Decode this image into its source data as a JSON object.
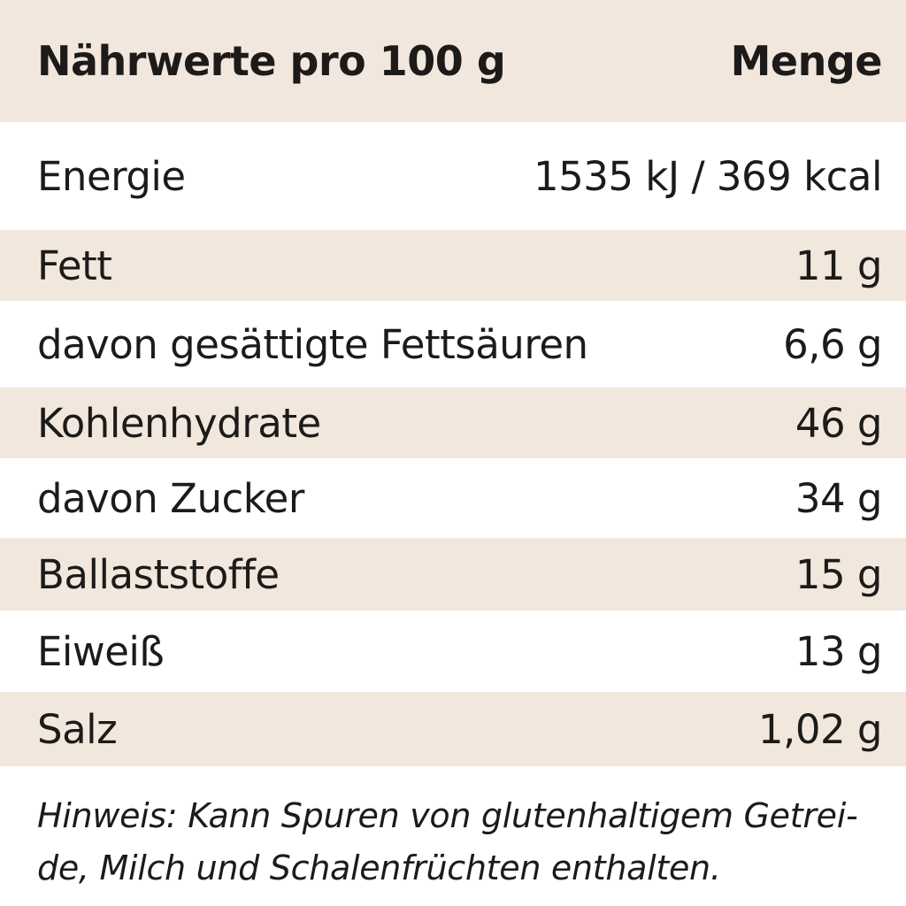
{
  "header": {
    "label": "Nährwerte pro 100 g",
    "amount": "Menge"
  },
  "rows": [
    {
      "label": "Energie",
      "value": "1535 kJ / 369 kcal"
    },
    {
      "label": "Fett",
      "value": "11 g"
    },
    {
      "label": "davon gesättigte Fettsäuren",
      "value": "6,6 g"
    },
    {
      "label": "Kohlenhydrate",
      "value": "46 g"
    },
    {
      "label": "davon Zucker",
      "value": "34 g"
    },
    {
      "label": "Ballaststoffe",
      "value": "15 g"
    },
    {
      "label": "Eiweiß",
      "value": "13 g"
    },
    {
      "label": "Salz",
      "value": "1,02 g"
    }
  ],
  "note": {
    "line1": "Hinweis: Kann Spuren von glutenhaltigem Getrei-",
    "line2": "de, Milch und Schalenfrüchten enthalten."
  },
  "colors": {
    "stripe": "#f1e7dd",
    "background": "#ffffff",
    "text": "#1d1b19"
  }
}
